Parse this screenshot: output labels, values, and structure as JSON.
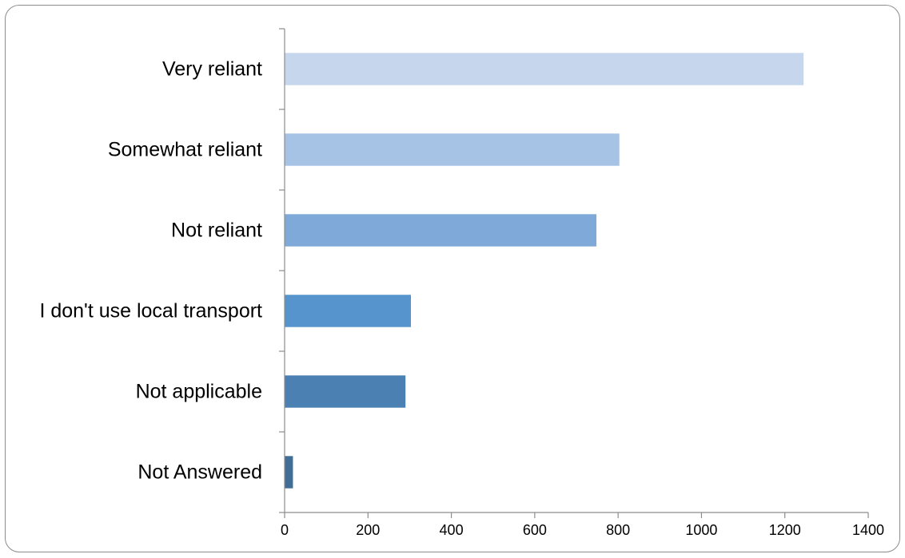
{
  "chart_data": {
    "type": "bar",
    "orientation": "horizontal",
    "categories": [
      "Very reliant",
      "Somewhat reliant",
      "Not reliant",
      "I don't use local transport",
      "Not applicable",
      "Not Answered"
    ],
    "values": [
      1245,
      803,
      748,
      303,
      290,
      20
    ],
    "title": "",
    "xlabel": "",
    "ylabel": "",
    "xlim": [
      0,
      1400
    ],
    "x_ticks": [
      0,
      200,
      400,
      600,
      800,
      1000,
      1200,
      1400
    ],
    "grid": false,
    "legend": "none",
    "bar_colors": [
      "#c6d6ec",
      "#a6c2e5",
      "#7ea9d9",
      "#5594cc",
      "#4a80b2",
      "#416e97"
    ],
    "axis_color": "#8c8c8c"
  }
}
